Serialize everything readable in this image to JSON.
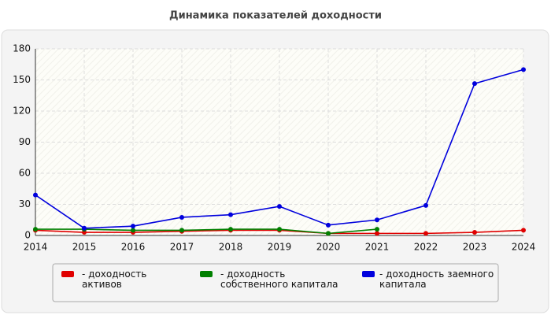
{
  "chart_data": {
    "type": "line",
    "title": "Динамика показателей доходности",
    "categories": [
      "2014",
      "2015",
      "2016",
      "2017",
      "2018",
      "2019",
      "2020",
      "2021",
      "2022",
      "2023",
      "2024"
    ],
    "series": [
      {
        "name": "- доходность активов",
        "color": "#e00000",
        "values": [
          5,
          3,
          3,
          4,
          5,
          5,
          2,
          2,
          2,
          3,
          5
        ]
      },
      {
        "name": "- доходность собственного капитала",
        "color": "#008000",
        "values": [
          6,
          6,
          5,
          5,
          6,
          6,
          2,
          6,
          null,
          null,
          null
        ]
      },
      {
        "name": "- доходность заемного капитала",
        "color": "#0000dd",
        "values": [
          39,
          7,
          9,
          17.5,
          20,
          28,
          10,
          15,
          29,
          146.5,
          160
        ]
      }
    ],
    "ylim": [
      0,
      180
    ],
    "yticks": [
      0,
      30,
      60,
      90,
      120,
      150,
      180
    ],
    "grid": true
  }
}
